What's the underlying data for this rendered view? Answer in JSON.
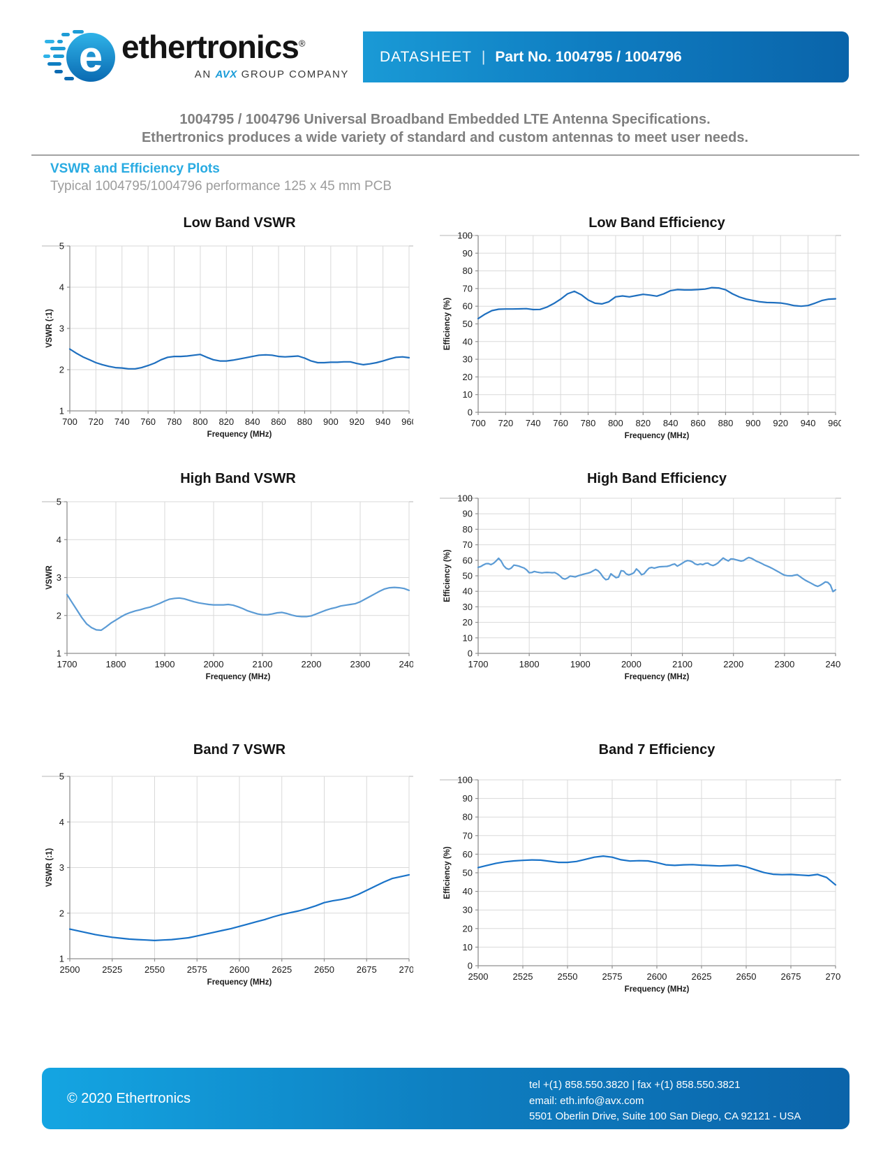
{
  "header": {
    "brand": "ethertronics",
    "brand_mark": "®",
    "tagline_prefix": "AN",
    "tagline_brand": "AVX",
    "tagline_suffix": "GROUP COMPANY",
    "banner_label": "DATASHEET",
    "banner_separator": "|",
    "banner_part": "Part No. 1004795 / 1004796"
  },
  "intro": {
    "line1": "1004795 / 1004796 Universal Broadband Embedded LTE Antenna Specifications.",
    "line2": "Ethertronics produces a wide variety of standard and custom antennas to meet user needs.",
    "section_title": "VSWR and Efficiency Plots",
    "section_subtitle": "Typical 1004795/1004796 performance 125 x 45 mm PCB"
  },
  "colors": {
    "accent_blue": "#29abe2",
    "banner_blue_left": "#1a9ad6",
    "banner_blue_right": "#0a64aa",
    "low_band_line": "#1e6fbf",
    "high_band_line": "#5b9bd5",
    "band7_line": "#1a73c8",
    "gridline": "#d9d9d9"
  },
  "chart_data": [
    {
      "type": "line",
      "title": "Low Band VSWR",
      "xlabel": "Frequency (MHz)",
      "ylabel": "VSWR (:1)",
      "xlim": [
        700,
        960
      ],
      "xtick_step": 20,
      "ylim": [
        1,
        5
      ],
      "ytick_step": 1,
      "line_color": "#1e6fbf",
      "y": [
        2.5,
        2.4,
        2.31,
        2.24,
        2.17,
        2.12,
        2.08,
        2.05,
        2.04,
        2.02,
        2.02,
        2.05,
        2.1,
        2.16,
        2.24,
        2.3,
        2.32,
        2.32,
        2.33,
        2.35,
        2.37,
        2.3,
        2.24,
        2.21,
        2.21,
        2.23,
        2.26,
        2.29,
        2.32,
        2.35,
        2.36,
        2.35,
        2.32,
        2.31,
        2.32,
        2.33,
        2.28,
        2.21,
        2.17,
        2.17,
        2.18,
        2.18,
        2.19,
        2.19,
        2.15,
        2.12,
        2.14,
        2.17,
        2.21,
        2.26,
        2.3,
        2.31,
        2.29
      ]
    },
    {
      "type": "line",
      "title": "Low Band Efficiency",
      "xlabel": "Frequency (MHz)",
      "ylabel": "Efficiency (%)",
      "xlim": [
        700,
        960
      ],
      "xtick_step": 20,
      "ylim": [
        0,
        100
      ],
      "ytick_step": 10,
      "line_color": "#1e6fbf",
      "y": [
        53.0,
        55.5,
        57.5,
        58.3,
        58.4,
        58.4,
        58.5,
        58.6,
        58.1,
        58.2,
        59.5,
        61.5,
        64.0,
        67.0,
        68.4,
        66.5,
        63.5,
        61.7,
        61.3,
        62.5,
        65.3,
        65.8,
        65.3,
        66.0,
        66.7,
        66.3,
        65.7,
        67.0,
        68.8,
        69.4,
        69.2,
        69.2,
        69.4,
        69.7,
        70.5,
        70.3,
        69.3,
        67.0,
        65.2,
        64.0,
        63.2,
        62.5,
        62.1,
        62.0,
        61.8,
        61.2,
        60.3,
        60.0,
        60.4,
        61.7,
        63.2,
        64.0,
        64.2
      ]
    },
    {
      "type": "line",
      "title": "High Band VSWR",
      "xlabel": "Frequency (MHz)",
      "ylabel": "VSWR",
      "xlim": [
        1700,
        2400
      ],
      "xtick_step": 100,
      "ylim": [
        1,
        5
      ],
      "ytick_step": 1,
      "line_color": "#5b9bd5",
      "y": [
        2.55,
        2.35,
        2.15,
        1.95,
        1.78,
        1.68,
        1.62,
        1.61,
        1.7,
        1.8,
        1.88,
        1.96,
        2.03,
        2.08,
        2.12,
        2.15,
        2.19,
        2.22,
        2.27,
        2.32,
        2.38,
        2.43,
        2.45,
        2.46,
        2.44,
        2.4,
        2.36,
        2.33,
        2.31,
        2.29,
        2.28,
        2.28,
        2.28,
        2.29,
        2.27,
        2.23,
        2.18,
        2.12,
        2.08,
        2.04,
        2.02,
        2.02,
        2.04,
        2.07,
        2.08,
        2.05,
        2.01,
        1.98,
        1.97,
        1.97,
        1.99,
        2.04,
        2.09,
        2.14,
        2.18,
        2.21,
        2.25,
        2.27,
        2.29,
        2.31,
        2.36,
        2.43,
        2.5,
        2.57,
        2.64,
        2.7,
        2.73,
        2.74,
        2.73,
        2.71,
        2.66
      ]
    },
    {
      "type": "line",
      "title": "High Band Efficiency",
      "xlabel": "Frequency (MHz)",
      "ylabel": "Efficiency (%)",
      "xlim": [
        1700,
        2400
      ],
      "xtick_step": 100,
      "ylim": [
        0,
        100
      ],
      "ytick_step": 10,
      "line_color": "#5b9bd5",
      "y": [
        55.5,
        56.0,
        57.0,
        57.8,
        57.9,
        57.2,
        58.0,
        59.5,
        61.3,
        59.5,
        56.5,
        54.8,
        54.2,
        55.0,
        56.9,
        56.6,
        56.2,
        55.6,
        55.0,
        53.8,
        52.0,
        52.1,
        52.8,
        52.4,
        52.1,
        51.9,
        52.1,
        52.2,
        52.1,
        52.0,
        52.1,
        51.2,
        50.0,
        48.4,
        47.9,
        48.6,
        49.8,
        49.6,
        49.3,
        49.9,
        50.4,
        50.9,
        51.3,
        51.7,
        52.2,
        53.2,
        54.1,
        53.2,
        51.5,
        49.0,
        47.5,
        47.9,
        51.3,
        50.0,
        48.8,
        49.2,
        53.3,
        53.0,
        51.2,
        50.6,
        51.1,
        52.0,
        54.4,
        52.9,
        50.7,
        51.3,
        53.4,
        55.0,
        55.4,
        54.9,
        55.4,
        55.8,
        55.9,
        56.0,
        56.1,
        56.5,
        57.2,
        57.6,
        56.2,
        57.1,
        58.1,
        59.2,
        59.8,
        59.6,
        58.9,
        57.6,
        57.1,
        57.6,
        57.2,
        58.0,
        58.2,
        57.1,
        56.6,
        57.3,
        58.4,
        60.0,
        61.5,
        60.4,
        59.6,
        60.9,
        60.8,
        60.3,
        59.9,
        59.5,
        59.8,
        61.0,
        61.8,
        61.3,
        60.4,
        59.4,
        58.8,
        58.0,
        57.1,
        56.4,
        55.7,
        54.9,
        54.0,
        53.1,
        52.2,
        51.2,
        50.4,
        50.1,
        50.0,
        50.0,
        50.4,
        50.7,
        49.6,
        48.4,
        47.3,
        46.4,
        45.6,
        44.7,
        43.8,
        43.2,
        43.9,
        44.9,
        46.1,
        45.7,
        44.0,
        39.8,
        41.0
      ]
    },
    {
      "type": "line",
      "title": "Band 7 VSWR",
      "xlabel": "Frequency (MHz)",
      "ylabel": "VSWR (:1)",
      "xlim": [
        2500,
        2700
      ],
      "xtick_step": 25,
      "ylim": [
        1,
        5
      ],
      "ytick_step": 1,
      "line_color": "#1a73c8",
      "y": [
        1.65,
        1.61,
        1.57,
        1.53,
        1.5,
        1.47,
        1.45,
        1.43,
        1.42,
        1.41,
        1.4,
        1.41,
        1.42,
        1.44,
        1.46,
        1.5,
        1.54,
        1.58,
        1.62,
        1.66,
        1.71,
        1.76,
        1.81,
        1.86,
        1.92,
        1.97,
        2.01,
        2.05,
        2.1,
        2.16,
        2.23,
        2.27,
        2.3,
        2.34,
        2.41,
        2.5,
        2.59,
        2.68,
        2.76,
        2.8,
        2.84
      ]
    },
    {
      "type": "line",
      "title": "Band 7 Efficiency",
      "xlabel": "Frequency (MHz)",
      "ylabel": "Efficiency (%)",
      "xlim": [
        2500,
        2700
      ],
      "xtick_step": 25,
      "ylim": [
        0,
        100
      ],
      "ytick_step": 10,
      "line_color": "#1a73c8",
      "y": [
        52.8,
        54.0,
        55.1,
        55.9,
        56.4,
        56.7,
        56.9,
        56.8,
        56.2,
        55.6,
        55.6,
        56.1,
        57.2,
        58.4,
        59.0,
        58.4,
        57.0,
        56.3,
        56.5,
        56.4,
        55.5,
        54.3,
        54.0,
        54.3,
        54.4,
        54.1,
        53.9,
        53.7,
        53.9,
        54.1,
        53.2,
        51.6,
        50.1,
        49.2,
        49.0,
        49.1,
        48.8,
        48.5,
        49.1,
        47.5,
        43.5
      ]
    }
  ],
  "footer": {
    "copyright": "© 2020 Ethertronics",
    "tel_fax": "tel +(1) 858.550.3820   |   fax +(1) 858.550.3821",
    "email": "email: eth.info@avx.com",
    "address": "5501 Oberlin Drive, Suite 100 San Diego, CA 92121  - USA"
  }
}
